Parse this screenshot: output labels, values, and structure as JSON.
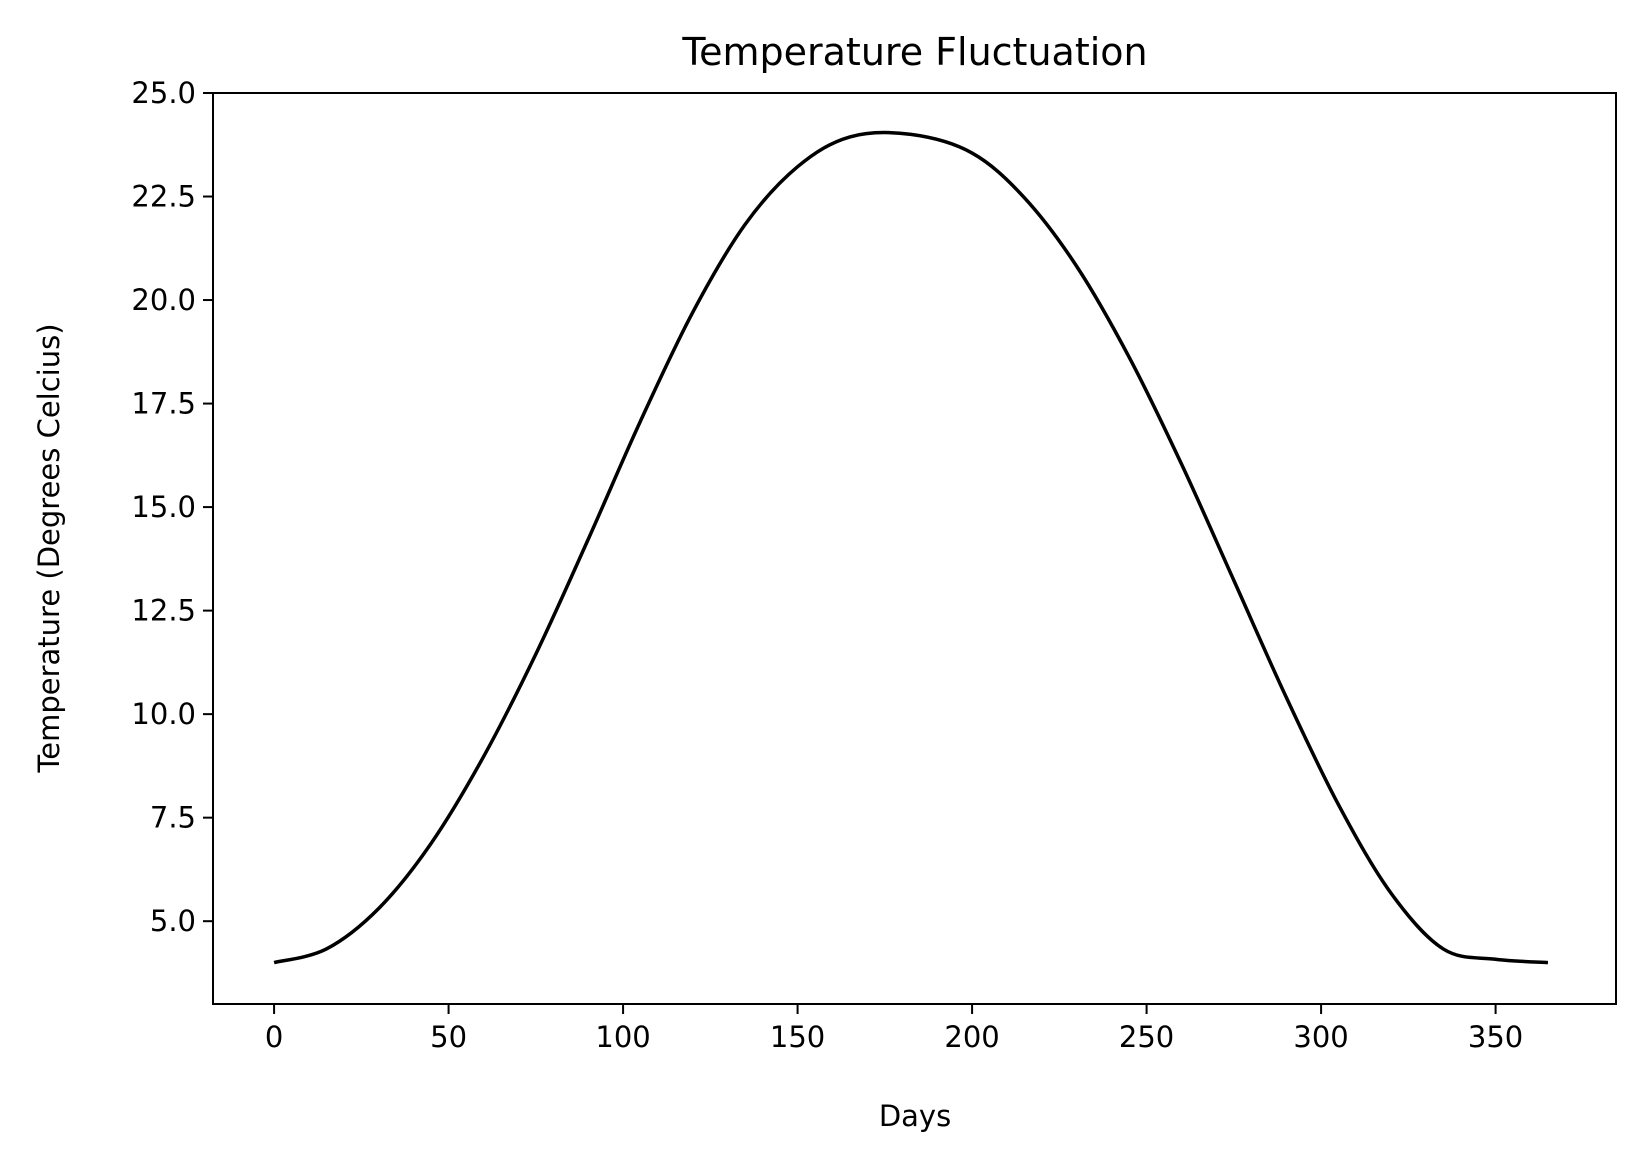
{
  "chart_data": {
    "type": "line",
    "title": "Temperature Fluctuation",
    "xlabel": "Days",
    "ylabel": "Temperature (Degrees Celcius)",
    "xlim": [
      -17.5,
      384.5
    ],
    "ylim": [
      3.0,
      25.0
    ],
    "xticks": [
      0,
      50,
      100,
      150,
      200,
      250,
      300,
      350
    ],
    "xtick_labels": [
      "0",
      "50",
      "100",
      "150",
      "200",
      "250",
      "300",
      "350"
    ],
    "yticks": [
      5.0,
      7.5,
      10.0,
      12.5,
      15.0,
      17.5,
      20.0,
      22.5,
      25.0
    ],
    "ytick_labels": [
      "5.0",
      "7.5",
      "10.0",
      "12.5",
      "15.0",
      "17.5",
      "20.0",
      "22.5",
      "25.0"
    ],
    "grid": false,
    "series": [
      {
        "color": "#000000",
        "x": [
          0,
          15,
          30,
          45,
          60,
          75,
          90,
          105,
          120,
          135,
          150,
          165,
          182.5,
          200,
          215,
          230,
          245,
          260,
          275,
          290,
          305,
          320,
          335,
          350,
          365
        ],
        "y": [
          4.0,
          4.33,
          5.31,
          6.88,
          8.97,
          11.45,
          14.22,
          17.08,
          19.71,
          21.83,
          23.22,
          23.94,
          24.0,
          23.55,
          22.47,
          20.81,
          18.62,
          16.04,
          13.23,
          10.41,
          7.81,
          5.68,
          4.33,
          4.08,
          4.0
        ]
      }
    ]
  }
}
